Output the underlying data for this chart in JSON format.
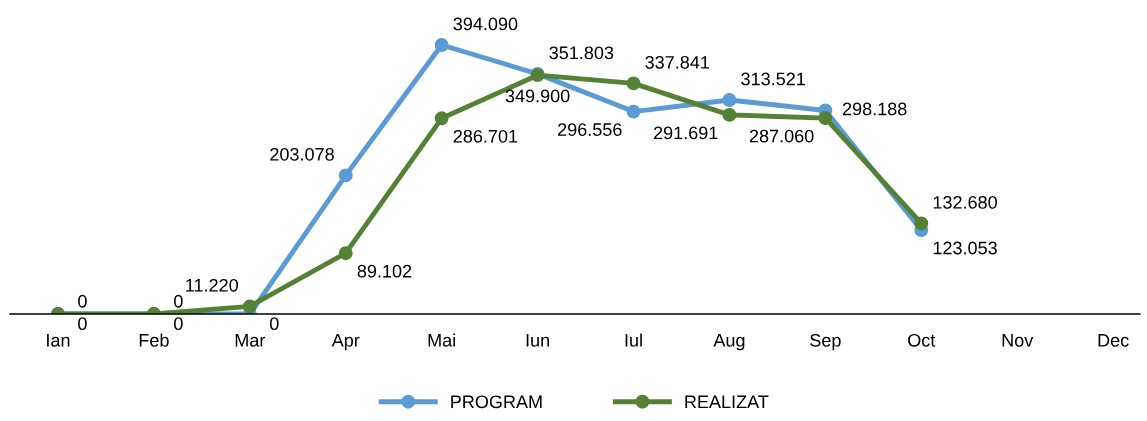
{
  "chart_data": {
    "type": "line",
    "categories": [
      "Ian",
      "Feb",
      "Mar",
      "Apr",
      "Mai",
      "Iun",
      "Iul",
      "Aug",
      "Sep",
      "Oct",
      "Nov",
      "Dec"
    ],
    "series": [
      {
        "name": "PROGRAM",
        "color": "#5b9bd5",
        "values": [
          0,
          0,
          0,
          203078,
          394090,
          351803,
          296556,
          313521,
          298188,
          123053,
          null,
          null
        ],
        "value_labels": [
          "0",
          "0",
          "0",
          "203.078",
          "394.090",
          "351.803",
          "296.556",
          "313.521",
          "298.188",
          "123.053",
          null,
          null
        ]
      },
      {
        "name": "REALIZAT",
        "color": "#548235",
        "values": [
          0,
          0,
          11220,
          89102,
          286701,
          349900,
          337841,
          291691,
          287060,
          132680,
          null,
          null
        ],
        "value_labels": [
          "0",
          "0",
          "11.220",
          "89.102",
          "286.701",
          "349.900",
          "337.841",
          "291.691",
          "287.060",
          "132.680",
          null,
          null
        ]
      }
    ],
    "relative": false,
    "marker": "circle",
    "legend": "bottom",
    "grid": false
  }
}
